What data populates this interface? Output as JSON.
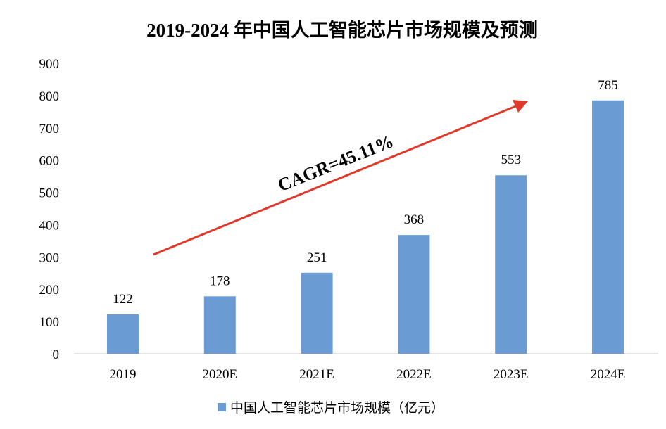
{
  "chart_data": {
    "type": "bar",
    "title": "2019-2024 年中国人工智能芯片市场规模及预测",
    "categories": [
      "2019",
      "2020E",
      "2021E",
      "2022E",
      "2023E",
      "2024E"
    ],
    "series": [
      {
        "name": "中国人工智能芯片市场规模（亿元）",
        "values": [
          122,
          178,
          251,
          368,
          553,
          785
        ],
        "color": "#6a9bd2"
      }
    ],
    "xlabel": "",
    "ylabel": "",
    "ylim": [
      0,
      900
    ],
    "yticks": [
      0,
      100,
      200,
      300,
      400,
      500,
      600,
      700,
      800,
      900
    ],
    "grid": false,
    "legend": "bottom",
    "annotation": {
      "text": "CAGR=45.11%",
      "arrow_color": "#e0392b"
    }
  }
}
